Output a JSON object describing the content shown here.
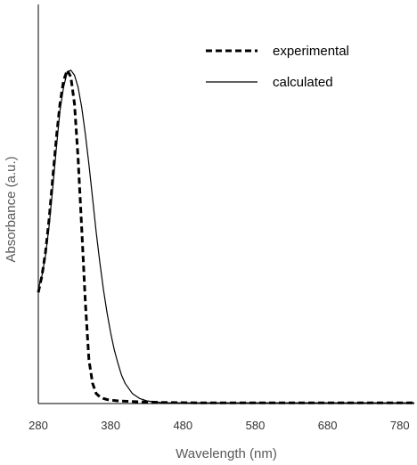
{
  "chart_data": {
    "type": "line",
    "xlabel": "Wavelength (nm)",
    "ylabel": "Absorbance (a.u.)",
    "xlim": [
      280,
      800
    ],
    "ylim": [
      0,
      1
    ],
    "xticks": [
      280,
      380,
      480,
      580,
      680,
      780
    ],
    "yticks": [],
    "grid": false,
    "legend_position": "top-right",
    "series": [
      {
        "name": "experimental",
        "style": "dashed",
        "color": "#000000",
        "x": [
          280,
          285,
          290,
          295,
          300,
          305,
          310,
          315,
          320,
          325,
          330,
          335,
          340,
          345,
          350,
          355,
          360,
          365,
          370,
          375,
          380,
          390,
          400,
          420,
          440,
          460,
          500,
          600,
          700,
          800
        ],
        "y": [
          0.33,
          0.38,
          0.45,
          0.55,
          0.67,
          0.79,
          0.89,
          0.96,
          0.99,
          0.97,
          0.89,
          0.73,
          0.52,
          0.3,
          0.13,
          0.06,
          0.03,
          0.02,
          0.015,
          0.012,
          0.01,
          0.008,
          0.007,
          0.005,
          0.004,
          0.003,
          0.002,
          0.002,
          0.002,
          0.002
        ]
      },
      {
        "name": "calculated",
        "style": "solid",
        "color": "#000000",
        "x": [
          280,
          285,
          290,
          295,
          300,
          305,
          310,
          315,
          320,
          325,
          330,
          335,
          340,
          345,
          350,
          355,
          360,
          365,
          370,
          375,
          380,
          385,
          390,
          395,
          400,
          410,
          420,
          430,
          440,
          450,
          460,
          480,
          500,
          600,
          700,
          800
        ],
        "y": [
          0.34,
          0.38,
          0.44,
          0.53,
          0.64,
          0.76,
          0.87,
          0.94,
          0.985,
          0.99,
          0.975,
          0.94,
          0.88,
          0.8,
          0.71,
          0.61,
          0.51,
          0.42,
          0.34,
          0.27,
          0.21,
          0.16,
          0.12,
          0.085,
          0.06,
          0.03,
          0.015,
          0.008,
          0.005,
          0.003,
          0.002,
          0.002,
          0.002,
          0.002,
          0.002,
          0.002
        ]
      }
    ]
  }
}
